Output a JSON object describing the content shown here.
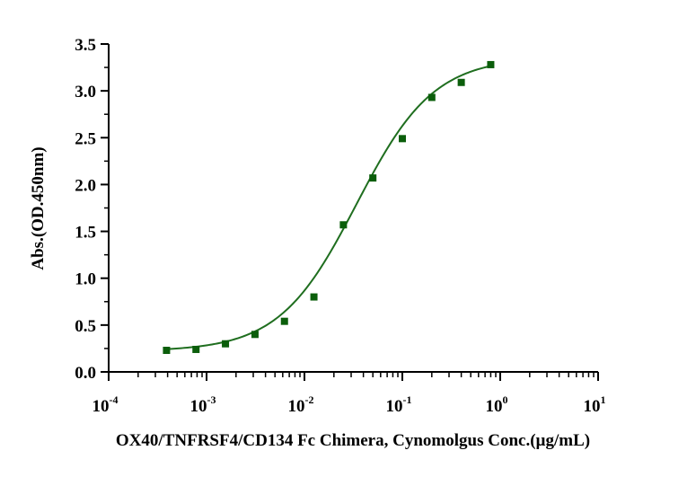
{
  "chart_data": {
    "type": "scatter",
    "title": "",
    "xlabel": "OX40/TNFRSF4/CD134 Fc Chimera, Cynomolgus Conc.(µg/mL)",
    "ylabel": "Abs.(OD.450nm)",
    "x_scale": "log",
    "xlim": [
      0.0001,
      10
    ],
    "ylim": [
      0,
      3.5
    ],
    "x_tick_labels": [
      {
        "base": "10",
        "exp": "-4"
      },
      {
        "base": "10",
        "exp": "-3"
      },
      {
        "base": "10",
        "exp": "-2"
      },
      {
        "base": "10",
        "exp": "-1"
      },
      {
        "base": "10",
        "exp": "0"
      },
      {
        "base": "10",
        "exp": "1"
      }
    ],
    "y_tick_labels": [
      "0.0",
      "0.5",
      "1.0",
      "1.5",
      "2.0",
      "2.5",
      "3.0",
      "3.5"
    ],
    "grid": false,
    "series": [
      {
        "color": "#0b5e0b",
        "marker": "square",
        "fit": "4PL",
        "x": [
          0.00039,
          0.00078,
          0.00156,
          0.003125,
          0.00625,
          0.0125,
          0.025,
          0.05,
          0.1,
          0.2,
          0.4,
          0.8
        ],
        "y": [
          0.23,
          0.24,
          0.3,
          0.4,
          0.54,
          0.8,
          1.57,
          2.07,
          2.49,
          2.93,
          3.09,
          3.28
        ]
      }
    ],
    "fit_curve": {
      "color": "#1f6e1f",
      "bottom": 0.22,
      "top": 3.36,
      "ec50": 0.034,
      "hill": 1.1,
      "x_range": [
        0.00039,
        0.8
      ]
    }
  }
}
